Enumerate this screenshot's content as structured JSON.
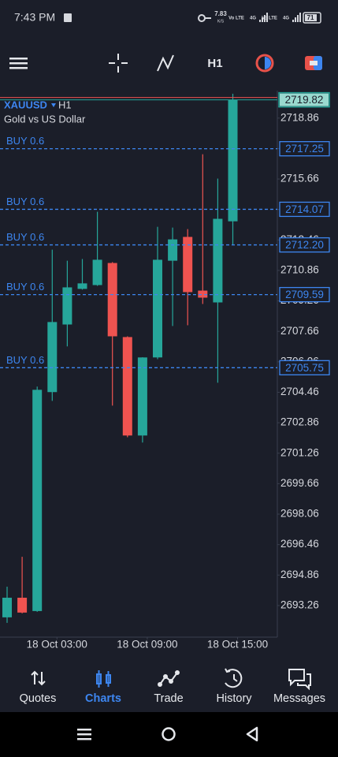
{
  "status_bar": {
    "time": "7:43 PM",
    "speed": "7.83",
    "speed_unit": "K/S",
    "networks": [
      "Vo LTE",
      "4G",
      "Vo LTE",
      "4G"
    ],
    "battery": "71"
  },
  "toolbar": {
    "timeframe": "H1"
  },
  "chart_data": {
    "type": "candlestick",
    "symbol": "XAUUSD",
    "timeframe": "H1",
    "description": "Gold vs US Dollar",
    "categories": [
      null,
      null,
      null,
      "18 Oct 03:00",
      null,
      null,
      null,
      null,
      null,
      "18 Oct 09:00",
      null,
      null,
      null,
      null,
      null,
      "18 Oct 15:00"
    ],
    "open": [
      2692.64,
      2693.67,
      2692.97,
      2704.47,
      2708.02,
      2709.89,
      2710.09,
      2711.25,
      2707.36,
      2702.19,
      2706.29,
      2711.37,
      2712.62,
      2709.8,
      2709.18,
      2713.44
    ],
    "high": [
      2694.25,
      2695.82,
      2704.76,
      2711.95,
      2711.37,
      2711.46,
      2713.94,
      2711.3,
      2707.4,
      2706.3,
      2713.15,
      2713.11,
      2713.03,
      2716.96,
      2715.68,
      2720.14
    ],
    "low": [
      2692.35,
      2692.85,
      2692.93,
      2704.01,
      2706.87,
      2709.85,
      2710.05,
      2703.76,
      2702.1,
      2701.82,
      2706.2,
      2707.94,
      2707.98,
      2709.1,
      2704.96,
      2712.2
    ],
    "close": [
      2693.67,
      2692.89,
      2704.59,
      2708.15,
      2709.97,
      2710.18,
      2711.42,
      2707.4,
      2702.19,
      2706.29,
      2711.42,
      2712.49,
      2709.72,
      2709.43,
      2713.57,
      2719.82
    ],
    "up_color": "#26a69a",
    "down_color": "#ef5350",
    "ylim": [
      2691.6,
      2720.3
    ],
    "yticks": [
      2718.86,
      2717.26,
      2715.66,
      2714.06,
      2712.46,
      2710.86,
      2709.26,
      2707.66,
      2706.06,
      2704.46,
      2702.86,
      2701.26,
      2699.66,
      2698.06,
      2696.46,
      2694.86,
      2693.26
    ],
    "current_price": 2719.82,
    "orders": [
      {
        "label": "BUY 0.6",
        "price": 2717.25,
        "value_label": "2717.25"
      },
      {
        "label": "BUY 0.6",
        "price": 2714.07,
        "value_label": "2714.07"
      },
      {
        "label": "BUY 0.6",
        "price": 2712.2,
        "value_label": "2712.20"
      },
      {
        "label": "BUY 0.6",
        "price": 2709.59,
        "value_label": "2709.59"
      },
      {
        "label": "BUY 0.6",
        "price": 2705.75,
        "value_label": "2705.75"
      }
    ],
    "order_color": "#3d86f0"
  },
  "nav": {
    "items": [
      "Quotes",
      "Charts",
      "Trade",
      "History",
      "Messages"
    ],
    "active": 1
  }
}
